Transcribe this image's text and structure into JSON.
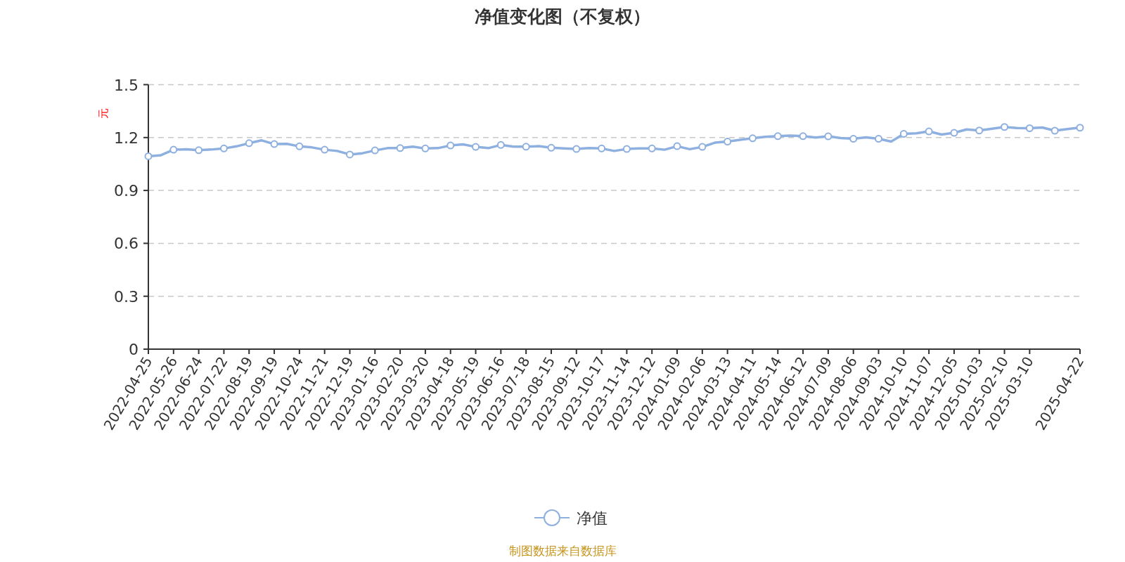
{
  "chart_data": {
    "type": "line",
    "title": "净值变化图（不复权）",
    "ylabel": "元",
    "categories": [
      "2022-04-25",
      null,
      "2022-05-26",
      null,
      "2022-06-24",
      null,
      "2022-07-22",
      null,
      "2022-08-19",
      null,
      "2022-09-19",
      null,
      "2022-10-24",
      null,
      "2022-11-21",
      null,
      "2022-12-19",
      null,
      "2023-01-16",
      null,
      "2023-02-20",
      null,
      "2023-03-20",
      null,
      "2023-04-18",
      null,
      "2023-05-19",
      null,
      "2023-06-16",
      null,
      "2023-07-18",
      null,
      "2023-08-15",
      null,
      "2023-09-12",
      null,
      "2023-10-17",
      null,
      "2023-11-14",
      null,
      "2023-12-12",
      null,
      "2024-01-09",
      null,
      "2024-02-06",
      null,
      "2024-03-13",
      null,
      "2024-04-11",
      null,
      "2024-05-14",
      null,
      "2024-06-12",
      null,
      "2024-07-09",
      null,
      "2024-08-06",
      null,
      "2024-09-03",
      null,
      "2024-10-10",
      null,
      "2024-11-07",
      null,
      "2024-12-05",
      null,
      "2025-01-03",
      null,
      "2025-02-10",
      null,
      "2025-03-10",
      null,
      null,
      null,
      "2025-04-22"
    ],
    "series": [
      {
        "name": "净值",
        "color": "#8eb0e0",
        "values": [
          1.094,
          1.1,
          1.131,
          1.133,
          1.128,
          1.132,
          1.138,
          1.15,
          1.168,
          1.184,
          1.163,
          1.164,
          1.15,
          1.144,
          1.131,
          1.124,
          1.104,
          1.111,
          1.127,
          1.14,
          1.14,
          1.148,
          1.138,
          1.14,
          1.155,
          1.161,
          1.147,
          1.14,
          1.158,
          1.148,
          1.148,
          1.151,
          1.142,
          1.138,
          1.135,
          1.14,
          1.138,
          1.124,
          1.135,
          1.138,
          1.138,
          1.131,
          1.151,
          1.134,
          1.147,
          1.171,
          1.177,
          1.187,
          1.196,
          1.204,
          1.208,
          1.211,
          1.208,
          1.2,
          1.207,
          1.197,
          1.193,
          1.201,
          1.193,
          1.177,
          1.221,
          1.224,
          1.235,
          1.217,
          1.227,
          1.246,
          1.24,
          1.25,
          1.26,
          1.254,
          1.253,
          1.257,
          1.239,
          1.248,
          1.256
        ]
      }
    ],
    "ylim": [
      0,
      1.5
    ],
    "yticks": [
      0,
      0.3,
      0.6,
      0.9,
      1.2,
      1.5
    ],
    "grid": "y",
    "legend": "bottom",
    "marker": "circle",
    "line_style": "solid",
    "annotations": [
      "制图数据来自数据库"
    ]
  }
}
